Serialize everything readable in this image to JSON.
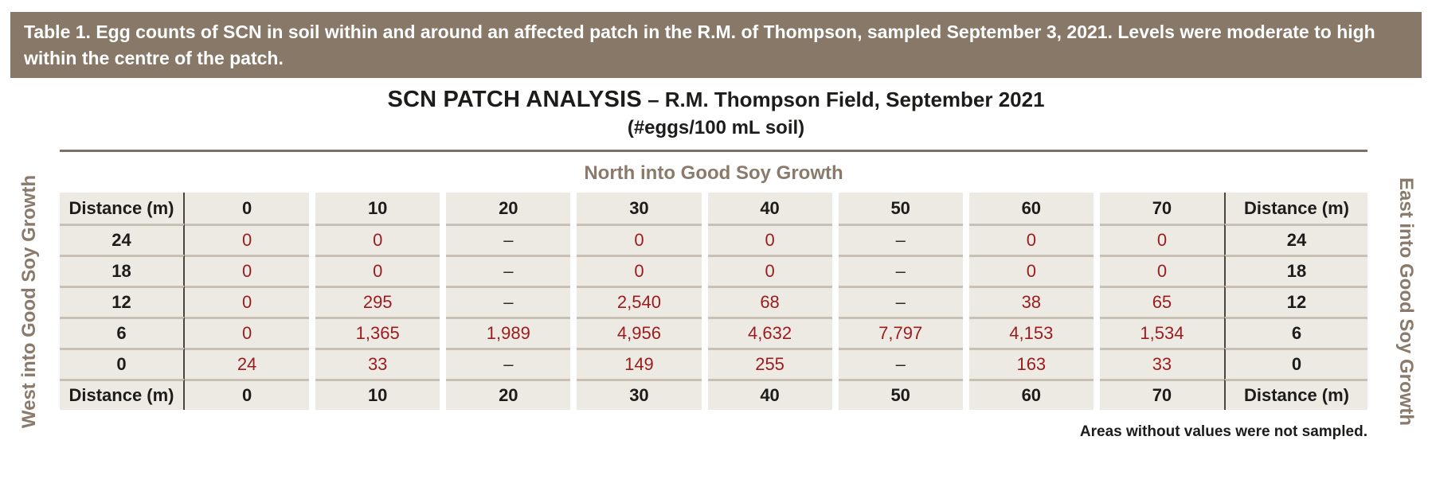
{
  "colors": {
    "banner_bg": "#877868",
    "accent_brown": "#8a7a6b",
    "value_red": "#9a1c1e",
    "cell_bg": "#edeae4",
    "row_line": "#c9c0b5",
    "dark_line": "#4c453e"
  },
  "banner": {
    "text": "Table 1. Egg counts of SCN in soil within and around an affected patch in the R.M. of Thompson, sampled September 3, 2021. Levels were moderate to high within the centre of the patch."
  },
  "title": {
    "main": "SCN PATCH ANALYSIS",
    "rest": " – R.M. Thompson Field,  September 2021",
    "subtitle": "(#eggs/100 mL soil)"
  },
  "axes": {
    "north": "North into Good Soy Growth",
    "west": "West into Good Soy Growth",
    "east": "East into Good Soy Growth"
  },
  "table": {
    "header": {
      "label": "Distance (m)",
      "values": [
        "0",
        "10",
        "20",
        "30",
        "40",
        "50",
        "60",
        "70"
      ],
      "label_right": "Distance (m)"
    },
    "rows": [
      {
        "label": "24",
        "values": [
          "0",
          "0",
          "–",
          "0",
          "0",
          "–",
          "0",
          "0"
        ],
        "label_right": "24"
      },
      {
        "label": "18",
        "values": [
          "0",
          "0",
          "–",
          "0",
          "0",
          "–",
          "0",
          "0"
        ],
        "label_right": "18"
      },
      {
        "label": "12",
        "values": [
          "0",
          "295",
          "–",
          "2,540",
          "68",
          "–",
          "38",
          "65"
        ],
        "label_right": "12"
      },
      {
        "label": "6",
        "values": [
          "0",
          "1,365",
          "1,989",
          "4,956",
          "4,632",
          "7,797",
          "4,153",
          "1,534"
        ],
        "label_right": "6"
      },
      {
        "label": "0",
        "values": [
          "24",
          "33",
          "–",
          "149",
          "255",
          "–",
          "163",
          "33"
        ],
        "label_right": "0"
      }
    ],
    "footer": {
      "label": "Distance (m)",
      "values": [
        "0",
        "10",
        "20",
        "30",
        "40",
        "50",
        "60",
        "70"
      ],
      "label_right": "Distance (m)"
    }
  },
  "footnote": "Areas without values were not sampled.",
  "chart_data": {
    "type": "table",
    "title": "SCN PATCH ANALYSIS – R.M. Thompson Field, September 2021",
    "subtitle": "(#eggs/100 mL soil)",
    "caption": "Table 1. Egg counts of SCN in soil within and around an affected patch in the R.M. of Thompson, sampled September 3, 2021. Levels were moderate to high within the centre of the patch.",
    "column_axis_label": "North into Good Soy Growth",
    "row_axis_label_left": "West into Good Soy Growth",
    "row_axis_label_right": "East into Good Soy Growth",
    "columns_distance_m": [
      0,
      10,
      20,
      30,
      40,
      50,
      60,
      70
    ],
    "rows_distance_m": [
      24,
      18,
      12,
      6,
      0
    ],
    "values": [
      [
        0,
        0,
        null,
        0,
        0,
        null,
        0,
        0
      ],
      [
        0,
        0,
        null,
        0,
        0,
        null,
        0,
        0
      ],
      [
        0,
        295,
        null,
        2540,
        68,
        null,
        38,
        65
      ],
      [
        0,
        1365,
        1989,
        4956,
        4632,
        7797,
        4153,
        1534
      ],
      [
        24,
        33,
        null,
        149,
        255,
        null,
        163,
        33
      ]
    ],
    "note": "Areas without values were not sampled."
  }
}
